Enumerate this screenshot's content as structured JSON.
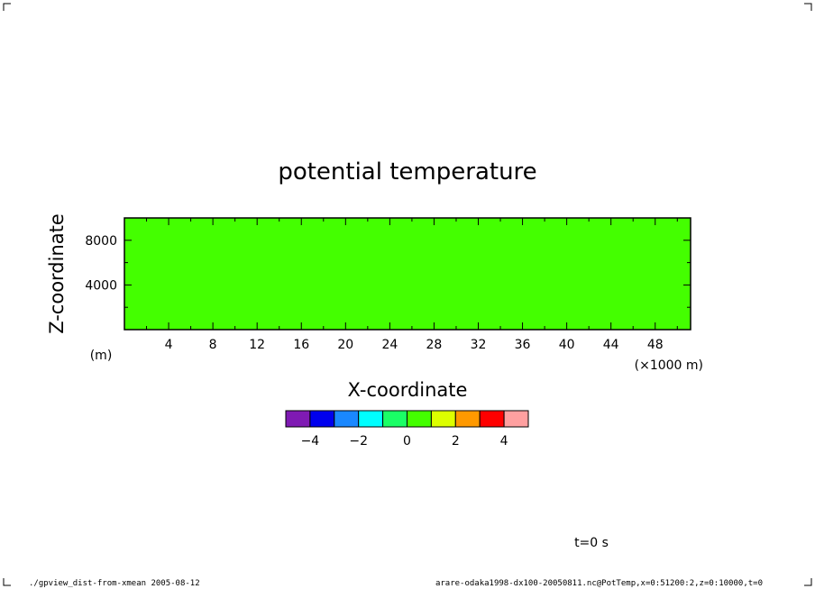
{
  "chart_data": {
    "type": "heatmap",
    "title": "potential temperature",
    "xlabel": "X-coordinate",
    "ylabel": "Z-coordinate",
    "x_unit": "(×1000 m)",
    "y_unit": "(m)",
    "xlim": [
      0,
      51.2
    ],
    "ylim": [
      0,
      10000
    ],
    "x_ticks_major": [
      4,
      8,
      12,
      16,
      20,
      24,
      28,
      32,
      36,
      40,
      44,
      48
    ],
    "x_ticks_minor_step": 2,
    "y_ticks_major": [
      4000,
      8000
    ],
    "y_ticks_minor_step": 2000,
    "field_value": 0.5,
    "field_color": "#44ff00",
    "colorbar": {
      "levels": [
        -5,
        -4,
        -3,
        -2,
        -1,
        0,
        1,
        2,
        3,
        4,
        5
      ],
      "colors": [
        "#7f1ab3",
        "#0000ee",
        "#1a88ff",
        "#00ffff",
        "#1aff66",
        "#44ff00",
        "#ddff00",
        "#ff9900",
        "#ff0000",
        "#ffa0a0"
      ],
      "tick_labels": [
        "−4",
        "−2",
        "0",
        "2",
        "4"
      ],
      "tick_values": [
        -4,
        -2,
        0,
        2,
        4
      ]
    },
    "time_label": "t=0 s"
  },
  "footer": {
    "left": "./gpview_dist-from-xmean  2005-08-12",
    "right": "arare-odaka1998-dx100-20050811.nc@PotTemp,x=0:51200:2,z=0:10000,t=0"
  }
}
